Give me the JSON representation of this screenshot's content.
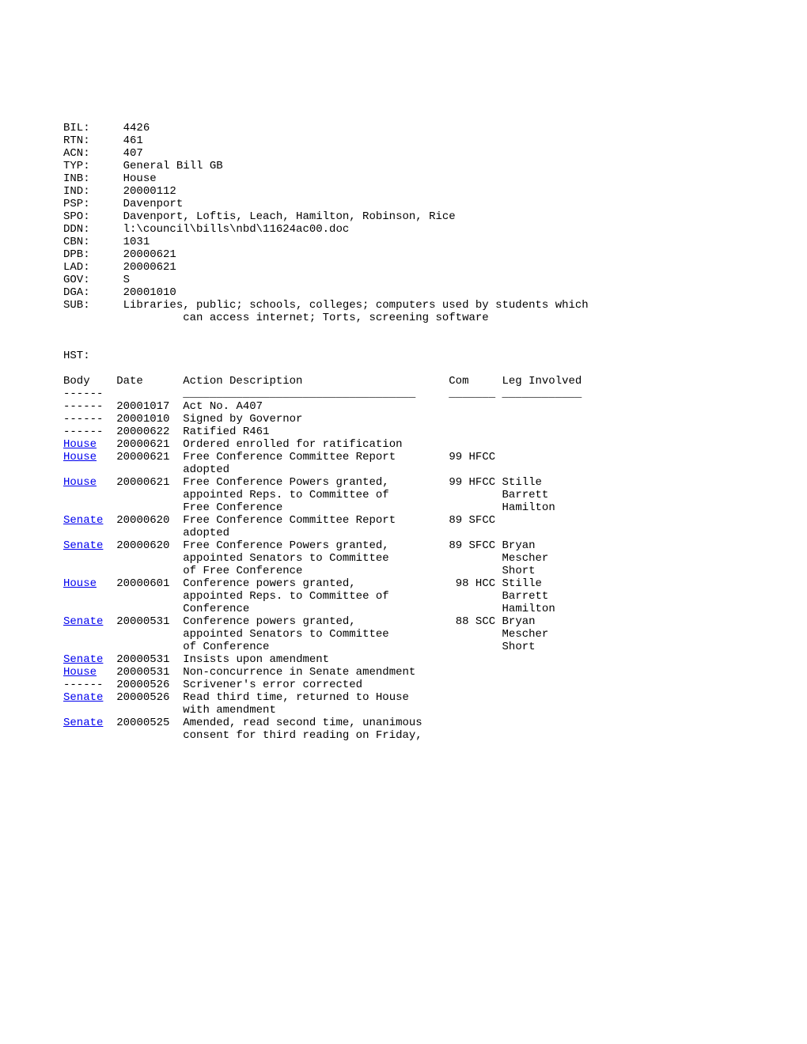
{
  "fields": [
    {
      "label": "BIL:",
      "value": "4426"
    },
    {
      "label": "RTN:",
      "value": "461"
    },
    {
      "label": "ACN:",
      "value": "407"
    },
    {
      "label": "TYP:",
      "value": "General Bill GB"
    },
    {
      "label": "INB:",
      "value": "House"
    },
    {
      "label": "IND:",
      "value": "20000112"
    },
    {
      "label": "PSP:",
      "value": "Davenport"
    },
    {
      "label": "SPO:",
      "value": "Davenport, Loftis, Leach, Hamilton, Robinson, Rice"
    },
    {
      "label": "DDN:",
      "value": "l:\\council\\bills\\nbd\\11624ac00.doc"
    },
    {
      "label": "CBN:",
      "value": "1031"
    },
    {
      "label": "DPB:",
      "value": "20000621"
    },
    {
      "label": "LAD:",
      "value": "20000621"
    },
    {
      "label": "GOV:",
      "value": "S"
    },
    {
      "label": "DGA:",
      "value": "20001010"
    },
    {
      "label": "SUB:",
      "value": "Libraries, public; schools, colleges; computers used by students which\n         can access internet; Torts, screening software"
    }
  ],
  "history_label": "HST:",
  "headers": {
    "body": "Body",
    "date": "Date",
    "action": "Action Description",
    "com": "Com",
    "leg": "Leg Involved"
  },
  "separator": {
    "body": "------",
    "action": "___________________________________",
    "com": "_______",
    "leg": "____________"
  },
  "history": [
    {
      "body": "------",
      "body_link": false,
      "date": "20001017",
      "action": [
        "Act No. A407"
      ],
      "com": "",
      "leg": []
    },
    {
      "body": "------",
      "body_link": false,
      "date": "20001010",
      "action": [
        "Signed by Governor"
      ],
      "com": "",
      "leg": []
    },
    {
      "body": "------",
      "body_link": false,
      "date": "20000622",
      "action": [
        "Ratified R461"
      ],
      "com": "",
      "leg": []
    },
    {
      "body": "House",
      "body_link": true,
      "date": "20000621",
      "action": [
        "Ordered enrolled for ratification"
      ],
      "com": "",
      "leg": []
    },
    {
      "body": "House",
      "body_link": true,
      "date": "20000621",
      "action": [
        "Free Conference Committee Report",
        "adopted"
      ],
      "com": "99 HFCC",
      "leg": []
    },
    {
      "body": "House",
      "body_link": true,
      "date": "20000621",
      "action": [
        "Free Conference Powers granted,",
        "appointed Reps. to Committee of",
        "Free Conference"
      ],
      "com": "99 HFCC",
      "leg": [
        "Stille",
        "Barrett",
        "Hamilton"
      ]
    },
    {
      "body": "Senate",
      "body_link": true,
      "date": "20000620",
      "action": [
        "Free Conference Committee Report",
        "adopted"
      ],
      "com": "89 SFCC",
      "leg": []
    },
    {
      "body": "Senate",
      "body_link": true,
      "date": "20000620",
      "action": [
        "Free Conference Powers granted,",
        "appointed Senators to Committee",
        "of Free Conference"
      ],
      "com": "89 SFCC",
      "leg": [
        "Bryan",
        "Mescher",
        "Short"
      ]
    },
    {
      "body": "House",
      "body_link": true,
      "date": "20000601",
      "action": [
        "Conference powers granted,",
        "appointed Reps. to Committee of",
        "Conference"
      ],
      "com": "98 HCC",
      "leg": [
        "Stille",
        "Barrett",
        "Hamilton"
      ]
    },
    {
      "body": "Senate",
      "body_link": true,
      "date": "20000531",
      "action": [
        "Conference powers granted,",
        "appointed Senators to Committee",
        "of Conference"
      ],
      "com": "88 SCC",
      "leg": [
        "Bryan",
        "Mescher",
        "Short"
      ]
    },
    {
      "body": "Senate",
      "body_link": true,
      "date": "20000531",
      "action": [
        "Insists upon amendment"
      ],
      "com": "",
      "leg": []
    },
    {
      "body": "House",
      "body_link": true,
      "date": "20000531",
      "action": [
        "Non-concurrence in Senate amendment"
      ],
      "com": "",
      "leg": []
    },
    {
      "body": "------",
      "body_link": false,
      "date": "20000526",
      "action": [
        "Scrivener's error corrected"
      ],
      "com": "",
      "leg": []
    },
    {
      "body": "Senate",
      "body_link": true,
      "date": "20000526",
      "action": [
        "Read third time, returned to House",
        "with amendment"
      ],
      "com": "",
      "leg": []
    },
    {
      "body": "Senate",
      "body_link": true,
      "date": "20000525",
      "action": [
        "Amended, read second time, unanimous",
        "consent for third reading on Friday,"
      ],
      "com": "",
      "leg": []
    }
  ],
  "layout": {
    "label_width": 9,
    "body_width": 8,
    "date_width": 10,
    "action_width": 40,
    "com_width": 8,
    "leg_width": 12
  },
  "colors": {
    "text": "#000000",
    "link": "#0000ee",
    "background": "#ffffff"
  }
}
